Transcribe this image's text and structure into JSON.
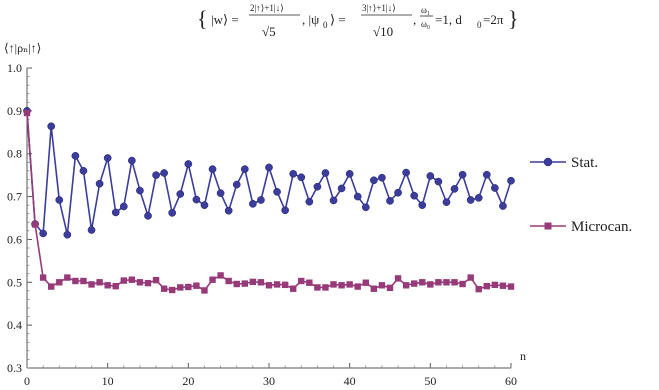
{
  "chart_data": {
    "type": "line",
    "title": {
      "open": "{",
      "w_ket": "|w⟩ =",
      "w_num": "2|↑⟩+1|↓⟩",
      "w_den": "√5",
      "psi_ket": ", |ψ",
      "psi_sub": "0",
      "psi_close": "⟩ =",
      "psi_num": "3|↑⟩+1|↓⟩",
      "psi_den": "√10",
      "omega_num": "ω₁",
      "omega_den": "ω₀",
      "rest": "=1, d",
      "d_sub": "0",
      "d_val": "=2π",
      "close": "}"
    },
    "ylabel": "⟨↑|ρₙ|↑⟩",
    "xlabel": "n",
    "xlim": [
      0,
      60
    ],
    "ylim": [
      0.3,
      1.0
    ],
    "xticks": [
      0,
      10,
      20,
      30,
      40,
      50,
      60
    ],
    "yticks": [
      0.3,
      0.4,
      0.5,
      0.6,
      0.7,
      0.8,
      0.9,
      1.0
    ],
    "grid": false,
    "legend_position": "right",
    "series": [
      {
        "name": "Stat.",
        "marker": "circle",
        "color": "#3b3d9c",
        "x": [
          0,
          1,
          2,
          3,
          4,
          5,
          6,
          7,
          8,
          9,
          10,
          11,
          12,
          13,
          14,
          15,
          16,
          17,
          18,
          19,
          20,
          21,
          22,
          23,
          24,
          25,
          26,
          27,
          28,
          29,
          30,
          31,
          32,
          33,
          34,
          35,
          36,
          37,
          38,
          39,
          40,
          41,
          42,
          43,
          44,
          45,
          46,
          47,
          48,
          49,
          50,
          51,
          52,
          53,
          54,
          55,
          56,
          57,
          58,
          59,
          60
        ],
        "y": [
          0.9,
          0.636,
          0.614,
          0.864,
          0.692,
          0.611,
          0.795,
          0.76,
          0.622,
          0.73,
          0.79,
          0.663,
          0.677,
          0.784,
          0.714,
          0.655,
          0.75,
          0.755,
          0.662,
          0.706,
          0.776,
          0.693,
          0.68,
          0.764,
          0.708,
          0.667,
          0.728,
          0.764,
          0.683,
          0.692,
          0.768,
          0.711,
          0.668,
          0.753,
          0.745,
          0.688,
          0.723,
          0.755,
          0.691,
          0.719,
          0.753,
          0.7,
          0.675,
          0.738,
          0.744,
          0.69,
          0.709,
          0.756,
          0.702,
          0.68,
          0.748,
          0.735,
          0.687,
          0.718,
          0.751,
          0.692,
          0.697,
          0.751,
          0.72,
          0.678,
          0.737
        ]
      },
      {
        "name": "Microcan.",
        "marker": "square",
        "color": "#973a79",
        "x": [
          0,
          1,
          2,
          3,
          4,
          5,
          6,
          7,
          8,
          9,
          10,
          11,
          12,
          13,
          14,
          15,
          16,
          17,
          18,
          19,
          20,
          21,
          22,
          23,
          24,
          25,
          26,
          27,
          28,
          29,
          30,
          31,
          32,
          33,
          34,
          35,
          36,
          37,
          38,
          39,
          40,
          41,
          42,
          43,
          44,
          45,
          46,
          47,
          48,
          49,
          50,
          51,
          52,
          53,
          54,
          55,
          56,
          57,
          58,
          59,
          60
        ],
        "y": [
          0.895,
          0.635,
          0.511,
          0.49,
          0.5,
          0.511,
          0.503,
          0.503,
          0.495,
          0.5,
          0.493,
          0.491,
          0.504,
          0.506,
          0.5,
          0.498,
          0.505,
          0.485,
          0.482,
          0.488,
          0.489,
          0.492,
          0.481,
          0.506,
          0.516,
          0.503,
          0.496,
          0.497,
          0.501,
          0.5,
          0.493,
          0.495,
          0.494,
          0.485,
          0.503,
          0.499,
          0.488,
          0.488,
          0.495,
          0.493,
          0.495,
          0.49,
          0.499,
          0.485,
          0.493,
          0.487,
          0.509,
          0.493,
          0.497,
          0.5,
          0.495,
          0.5,
          0.5,
          0.5,
          0.496,
          0.511,
          0.484,
          0.491,
          0.494,
          0.492,
          0.49
        ]
      }
    ]
  }
}
